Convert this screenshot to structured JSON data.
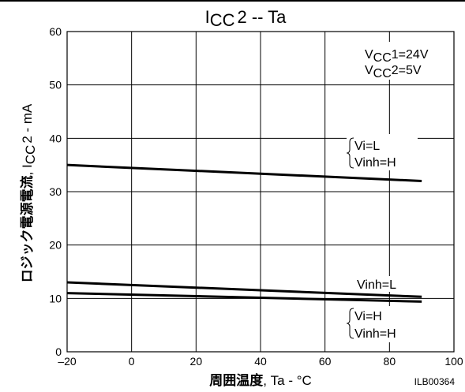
{
  "chart_data": {
    "type": "line",
    "title": {
      "base": "I",
      "sub": "CC",
      "rest": "2 -- Ta"
    },
    "xlabel": {
      "jp": "周囲温度",
      "rest": ", Ta - °C"
    },
    "ylabel": {
      "jp": "ロジック電源電流",
      "sep": ", I",
      "sub": "CC",
      "rest": "2 - mA"
    },
    "xlim": [
      -20,
      100
    ],
    "ylim": [
      0,
      60
    ],
    "x_ticks": [
      -20,
      0,
      20,
      40,
      60,
      80,
      100
    ],
    "y_ticks": [
      0,
      10,
      20,
      30,
      40,
      50,
      60
    ],
    "x_tick_labels": [
      "–20",
      "0",
      "20",
      "40",
      "60",
      "80",
      "100"
    ],
    "y_tick_labels": [
      "0",
      "10",
      "20",
      "30",
      "40",
      "50",
      "60"
    ],
    "grid": true,
    "conditions": [
      {
        "base": "V",
        "sub": "CC",
        "rest": "1=24V"
      },
      {
        "base": "V",
        "sub": "CC",
        "rest": "2=5V"
      }
    ],
    "series": [
      {
        "x": [
          -20,
          90
        ],
        "y": [
          35,
          32
        ]
      },
      {
        "x": [
          -20,
          90
        ],
        "y": [
          13,
          10.3
        ]
      },
      {
        "x": [
          -20,
          90
        ],
        "y": [
          11,
          9.4
        ]
      }
    ],
    "annotations": [
      {
        "lines": [
          "Vi=L",
          "Vinh=H"
        ]
      },
      {
        "lines": [
          "Vinh=L"
        ]
      },
      {
        "lines": [
          "Vi=H",
          "Vinh=H"
        ]
      }
    ],
    "code": "ILB00364"
  }
}
